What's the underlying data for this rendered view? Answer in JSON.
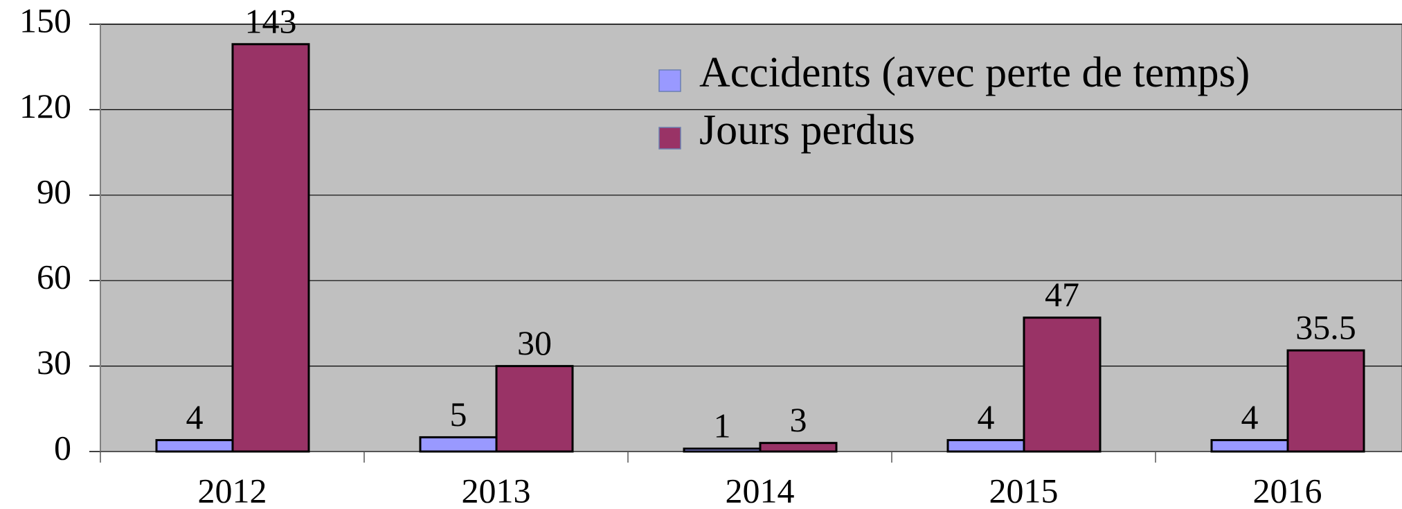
{
  "chart_data": {
    "type": "bar",
    "categories": [
      "2012",
      "2013",
      "2014",
      "2015",
      "2016"
    ],
    "series": [
      {
        "name": "Accidents (avec perte de temps)",
        "color": "#9999ff",
        "values": [
          4,
          5,
          1,
          4,
          4
        ]
      },
      {
        "name": "Jours perdus",
        "color": "#993366",
        "values": [
          143,
          30,
          3,
          47,
          35.5
        ]
      }
    ],
    "ylim": [
      0,
      150
    ],
    "yticks": [
      0,
      30,
      60,
      90,
      120,
      150
    ],
    "grid": true
  }
}
